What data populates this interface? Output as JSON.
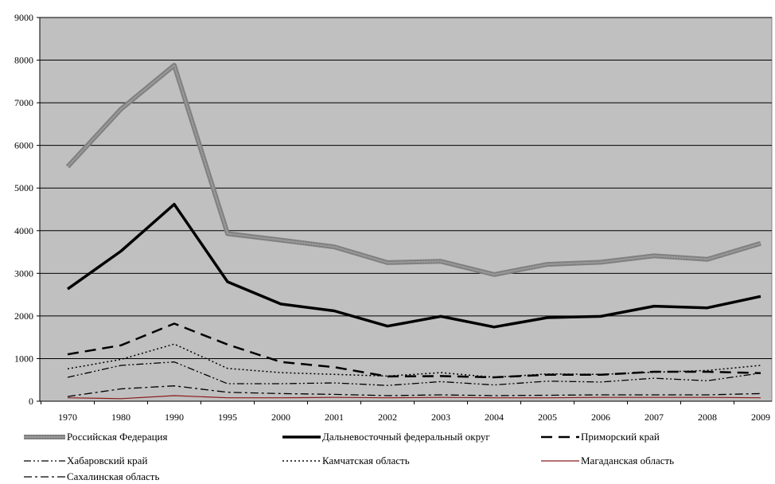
{
  "chart_data": {
    "type": "line",
    "title": "",
    "xlabel": "",
    "ylabel": "",
    "categories": [
      "1970",
      "1980",
      "1990",
      "1995",
      "2000",
      "2001",
      "2002",
      "2003",
      "2004",
      "2005",
      "2006",
      "2007",
      "2008",
      "2009"
    ],
    "ylim": [
      0,
      9000
    ],
    "yticks": [
      "0",
      "1000",
      "2000",
      "3000",
      "4000",
      "5000",
      "6000",
      "7000",
      "8000",
      "9000"
    ],
    "grid": true,
    "plot_background": "#c0c0c0",
    "legend_position": "bottom",
    "series": [
      {
        "name": "Российская Федерация",
        "color": "#999999",
        "style": "thick-double",
        "values": [
          5500,
          6850,
          7880,
          3930,
          3780,
          3620,
          3250,
          3280,
          2970,
          3210,
          3260,
          3410,
          3330,
          3700
        ]
      },
      {
        "name": "Дальневосточный федеральный округ",
        "color": "#000000",
        "style": "thick-solid",
        "values": [
          2630,
          3520,
          4620,
          2800,
          2280,
          2120,
          1760,
          1990,
          1740,
          1960,
          1990,
          2230,
          2190,
          2460
        ]
      },
      {
        "name": "Приморский край",
        "color": "#000000",
        "style": "long-dash",
        "values": [
          1100,
          1310,
          1820,
          1330,
          920,
          800,
          580,
          590,
          560,
          620,
          620,
          690,
          690,
          660
        ]
      },
      {
        "name": "Хабаровский край",
        "color": "#000000",
        "style": "dash-dot-dot",
        "values": [
          560,
          840,
          920,
          410,
          410,
          430,
          370,
          460,
          380,
          470,
          450,
          540,
          480,
          660
        ]
      },
      {
        "name": "Камчатская область",
        "color": "#000000",
        "style": "dotted",
        "values": [
          760,
          980,
          1340,
          770,
          670,
          630,
          590,
          670,
          560,
          640,
          630,
          680,
          720,
          840
        ]
      },
      {
        "name": "Магаданская область",
        "color": "#8b1a1a",
        "style": "thin-solid",
        "values": [
          80,
          60,
          130,
          80,
          80,
          90,
          80,
          90,
          80,
          80,
          90,
          90,
          90,
          80
        ]
      },
      {
        "name": "Сахалинская область",
        "color": "#000000",
        "style": "dash-dot",
        "values": [
          110,
          290,
          360,
          210,
          180,
          160,
          130,
          150,
          130,
          140,
          150,
          150,
          150,
          180
        ]
      }
    ]
  }
}
